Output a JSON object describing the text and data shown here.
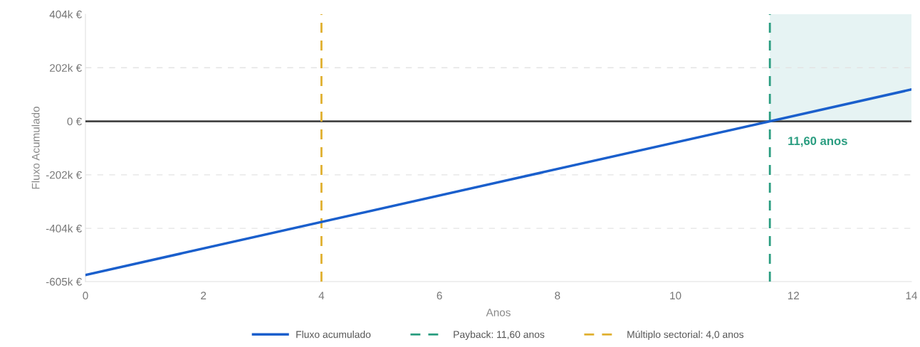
{
  "chart_data": {
    "type": "line",
    "xlabel": "Anos",
    "ylabel": "Fluxo Acumulado",
    "x": [
      0,
      14
    ],
    "series": [
      {
        "name": "Fluxo acumulado",
        "color": "#1a5fcc",
        "values": [
          -580000,
          120000
        ]
      }
    ],
    "xlim": [
      0,
      14
    ],
    "xticks": [
      0,
      2,
      4,
      6,
      8,
      10,
      12,
      14
    ],
    "ylim": [
      -605000,
      404000
    ],
    "yticks": [
      {
        "value": -605000,
        "label": "-605k €"
      },
      {
        "value": -404000,
        "label": "-404k €"
      },
      {
        "value": -202000,
        "label": "-202k €"
      },
      {
        "value": 0,
        "label": "0 €"
      },
      {
        "value": 202000,
        "label": "202k €"
      },
      {
        "value": 404000,
        "label": "404k €"
      }
    ],
    "ref_lines": [
      {
        "axis": "y",
        "value": 0,
        "color": "#444444",
        "line_style": "solid"
      },
      {
        "axis": "x",
        "value": 11.6,
        "label": "Payback: 11,60 anos",
        "color": "#2a9d80",
        "line_style": "dashed"
      },
      {
        "axis": "x",
        "value": 4,
        "label": "Múltiplo sectorial: 4,0 anos",
        "color": "#e0b030",
        "line_style": "dashed"
      }
    ],
    "bands": [
      {
        "axis": "x",
        "from": 11.6,
        "to": 14,
        "color": "#e6f3f3"
      }
    ],
    "annotations": [
      {
        "text": "11,60 anos",
        "x": 11.6,
        "y": 0
      }
    ],
    "grid": "y",
    "legend": "bottom",
    "marker": "none",
    "line_style": "solid"
  }
}
